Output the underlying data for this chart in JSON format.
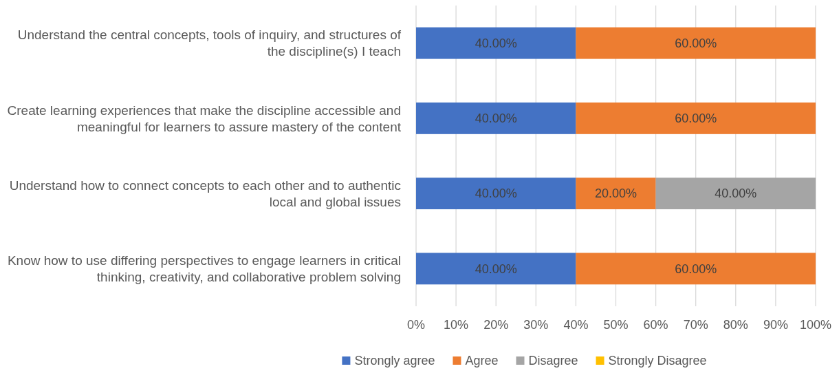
{
  "chart_data": {
    "type": "bar",
    "orientation": "horizontal",
    "stacked": true,
    "categories": [
      "Understand the central concepts, tools of inquiry, and structures of the discipline(s) I teach",
      "Create learning experiences that make the discipline accessible and meaningful for learners to assure mastery of the content",
      "Understand how to connect concepts to each other and to authentic local and global issues",
      "Know how to use differing perspectives to engage learners in critical thinking, creativity, and collaborative problem solving"
    ],
    "series": [
      {
        "name": "Strongly agree",
        "color": "#4472c4",
        "values": [
          40,
          40,
          40,
          40
        ],
        "value_labels": [
          "40.00%",
          "40.00%",
          "40.00%",
          "40.00%"
        ]
      },
      {
        "name": "Agree",
        "color": "#ed7d31",
        "values": [
          60,
          60,
          20,
          60
        ],
        "value_labels": [
          "60.00%",
          "60.00%",
          "20.00%",
          "60.00%"
        ]
      },
      {
        "name": "Disagree",
        "color": "#a5a5a5",
        "values": [
          0,
          0,
          40,
          0
        ],
        "value_labels": [
          null,
          null,
          "40.00%",
          null
        ]
      },
      {
        "name": "Strongly Disagree",
        "color": "#ffc000",
        "values": [
          0,
          0,
          0,
          0
        ],
        "value_labels": [
          null,
          null,
          null,
          null
        ]
      }
    ],
    "xlim": [
      0,
      100
    ],
    "xticks": [
      {
        "value": 0,
        "label": "0%"
      },
      {
        "value": 10,
        "label": "10%"
      },
      {
        "value": 20,
        "label": "20%"
      },
      {
        "value": 30,
        "label": "30%"
      },
      {
        "value": 40,
        "label": "40%"
      },
      {
        "value": 50,
        "label": "50%"
      },
      {
        "value": 60,
        "label": "60%"
      },
      {
        "value": 70,
        "label": "70%"
      },
      {
        "value": 80,
        "label": "80%"
      },
      {
        "value": 90,
        "label": "90%"
      },
      {
        "value": 100,
        "label": "100%"
      }
    ],
    "grid": "x",
    "legend": "bottom"
  }
}
